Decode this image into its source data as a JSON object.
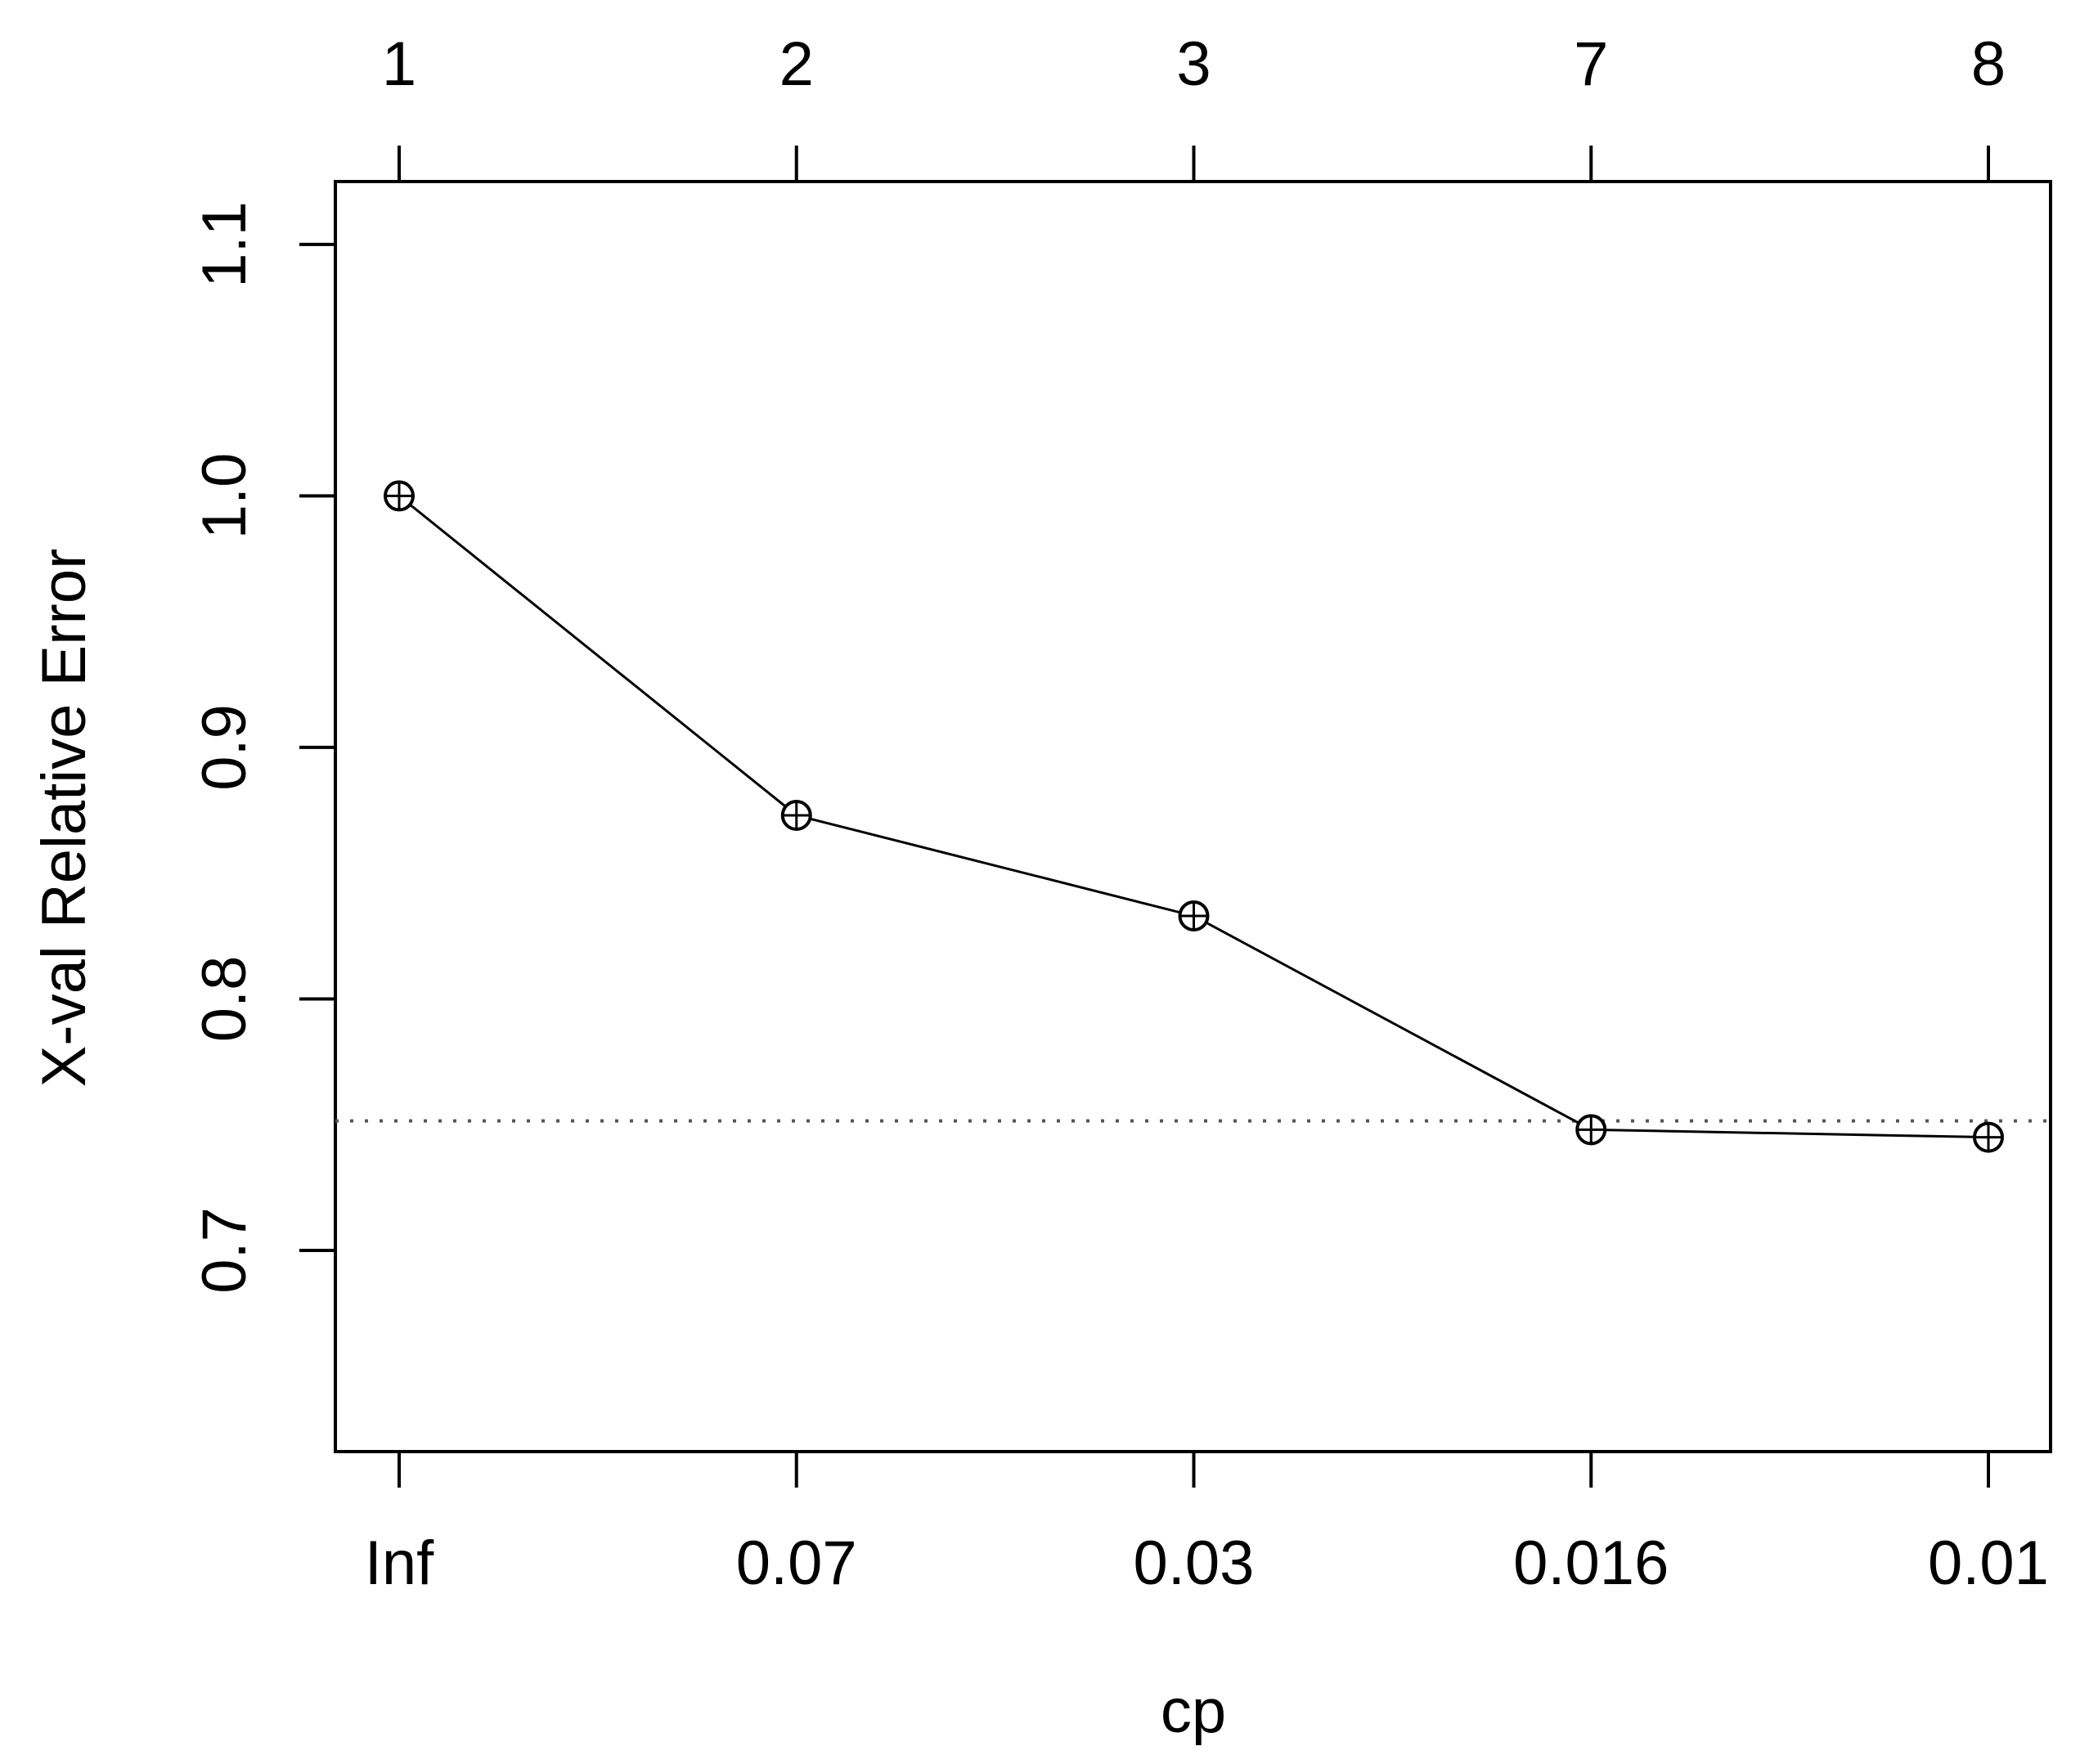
{
  "chart_data": {
    "type": "line",
    "title": "",
    "xlabel": "cp",
    "ylabel": "X-val Relative Error",
    "x_ticks_bottom": [
      "Inf",
      "0.07",
      "0.03",
      "0.016",
      "0.01"
    ],
    "x_ticks_top": [
      "1",
      "2",
      "3",
      "7",
      "8"
    ],
    "x": [
      "Inf",
      "0.07",
      "0.03",
      "0.016",
      "0.01"
    ],
    "values": [
      1.0,
      0.873,
      0.833,
      0.748,
      0.745
    ],
    "ylim": [
      0.62,
      1.125
    ],
    "y_ticks": [
      "0.7",
      "0.8",
      "0.9",
      "1.0",
      "1.1"
    ],
    "reference_line": 0.7515,
    "grid": false,
    "legend": "none",
    "colors": {
      "line": "#000000",
      "reference_line": "#555555",
      "marker": "#000000"
    }
  }
}
